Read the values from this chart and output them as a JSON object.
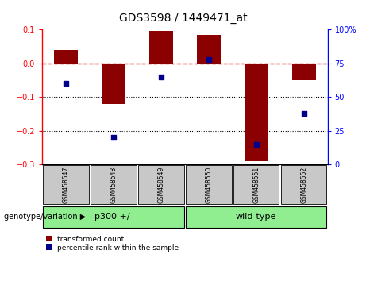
{
  "title": "GDS3598 / 1449471_at",
  "samples": [
    "GSM458547",
    "GSM458548",
    "GSM458549",
    "GSM458550",
    "GSM458551",
    "GSM458552"
  ],
  "red_bars": [
    0.04,
    -0.12,
    0.095,
    0.085,
    -0.29,
    -0.05
  ],
  "blue_points_pct": [
    60,
    20,
    65,
    78,
    15,
    38
  ],
  "ylim_left": [
    -0.3,
    0.1
  ],
  "ylim_right": [
    0,
    100
  ],
  "yticks_left": [
    -0.3,
    -0.2,
    -0.1,
    0.0,
    0.1
  ],
  "yticks_right": [
    0,
    25,
    50,
    75,
    100
  ],
  "ytick_right_labels": [
    "0",
    "25",
    "50",
    "75",
    "100%"
  ],
  "bar_color": "#8B0000",
  "point_color": "#00008B",
  "dashed_line_color": "#CC0000",
  "dotted_line_color": "#000000",
  "sample_box_color": "#C8C8C8",
  "group_colors": [
    "#90EE90",
    "#90EE90"
  ],
  "group_labels": [
    "p300 +/-",
    "wild-type"
  ],
  "group_splits": [
    3,
    3
  ],
  "legend_red_label": "transformed count",
  "legend_blue_label": "percentile rank within the sample",
  "genotype_label": "genotype/variation"
}
